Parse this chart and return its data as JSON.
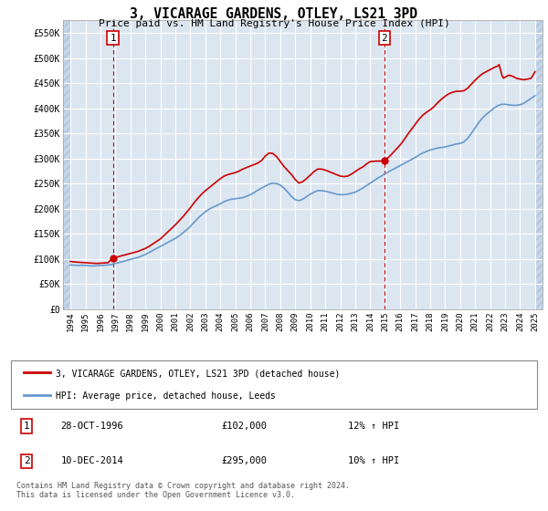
{
  "title": "3, VICARAGE GARDENS, OTLEY, LS21 3PD",
  "subtitle": "Price paid vs. HM Land Registry's House Price Index (HPI)",
  "hpi_label": "HPI: Average price, detached house, Leeds",
  "property_label": "3, VICARAGE GARDENS, OTLEY, LS21 3PD (detached house)",
  "sale1_label": "28-OCT-1996",
  "sale1_price": 102000,
  "sale1_hpi": "12% ↑ HPI",
  "sale2_label": "10-DEC-2014",
  "sale2_price": 295000,
  "sale2_hpi": "10% ↑ HPI",
  "sale1_date_num": 1996.83,
  "sale2_date_num": 2014.94,
  "ylim_min": 0,
  "ylim_max": 575000,
  "xlim_min": 1993.5,
  "xlim_max": 2025.5,
  "background_color": "#dce6f1",
  "red_line_color": "#cc0000",
  "blue_line_color": "#6699cc",
  "vline_color": "#cc0000",
  "grid_color": "#ffffff",
  "footer_text": "Contains HM Land Registry data © Crown copyright and database right 2024.\nThis data is licensed under the Open Government Licence v3.0.",
  "hpi_data": [
    [
      1994.0,
      88000
    ],
    [
      1994.25,
      87500
    ],
    [
      1994.5,
      87000
    ],
    [
      1994.75,
      87500
    ],
    [
      1995.0,
      87000
    ],
    [
      1995.25,
      86500
    ],
    [
      1995.5,
      86000
    ],
    [
      1995.75,
      86500
    ],
    [
      1996.0,
      87000
    ],
    [
      1996.25,
      87500
    ],
    [
      1996.5,
      88000
    ],
    [
      1996.75,
      89000
    ],
    [
      1997.0,
      91000
    ],
    [
      1997.25,
      93000
    ],
    [
      1997.5,
      95000
    ],
    [
      1997.75,
      97000
    ],
    [
      1998.0,
      99000
    ],
    [
      1998.25,
      101000
    ],
    [
      1998.5,
      103000
    ],
    [
      1998.75,
      106000
    ],
    [
      1999.0,
      109000
    ],
    [
      1999.25,
      113000
    ],
    [
      1999.5,
      117000
    ],
    [
      1999.75,
      121000
    ],
    [
      2000.0,
      125000
    ],
    [
      2000.25,
      129000
    ],
    [
      2000.5,
      133000
    ],
    [
      2000.75,
      137000
    ],
    [
      2001.0,
      141000
    ],
    [
      2001.25,
      146000
    ],
    [
      2001.5,
      152000
    ],
    [
      2001.75,
      158000
    ],
    [
      2002.0,
      165000
    ],
    [
      2002.25,
      173000
    ],
    [
      2002.5,
      181000
    ],
    [
      2002.75,
      188000
    ],
    [
      2003.0,
      194000
    ],
    [
      2003.25,
      199000
    ],
    [
      2003.5,
      203000
    ],
    [
      2003.75,
      206000
    ],
    [
      2004.0,
      210000
    ],
    [
      2004.25,
      214000
    ],
    [
      2004.5,
      217000
    ],
    [
      2004.75,
      219000
    ],
    [
      2005.0,
      220000
    ],
    [
      2005.25,
      221000
    ],
    [
      2005.5,
      222000
    ],
    [
      2005.75,
      225000
    ],
    [
      2006.0,
      228000
    ],
    [
      2006.25,
      232000
    ],
    [
      2006.5,
      237000
    ],
    [
      2006.75,
      241000
    ],
    [
      2007.0,
      245000
    ],
    [
      2007.25,
      249000
    ],
    [
      2007.5,
      251000
    ],
    [
      2007.75,
      250000
    ],
    [
      2008.0,
      247000
    ],
    [
      2008.25,
      241000
    ],
    [
      2008.5,
      233000
    ],
    [
      2008.75,
      224000
    ],
    [
      2009.0,
      218000
    ],
    [
      2009.25,
      216000
    ],
    [
      2009.5,
      219000
    ],
    [
      2009.75,
      224000
    ],
    [
      2010.0,
      229000
    ],
    [
      2010.25,
      233000
    ],
    [
      2010.5,
      236000
    ],
    [
      2010.75,
      236000
    ],
    [
      2011.0,
      235000
    ],
    [
      2011.25,
      233000
    ],
    [
      2011.5,
      231000
    ],
    [
      2011.75,
      229000
    ],
    [
      2012.0,
      228000
    ],
    [
      2012.25,
      228000
    ],
    [
      2012.5,
      229000
    ],
    [
      2012.75,
      231000
    ],
    [
      2013.0,
      233000
    ],
    [
      2013.25,
      237000
    ],
    [
      2013.5,
      241000
    ],
    [
      2013.75,
      246000
    ],
    [
      2014.0,
      251000
    ],
    [
      2014.25,
      256000
    ],
    [
      2014.5,
      261000
    ],
    [
      2014.75,
      265000
    ],
    [
      2015.0,
      270000
    ],
    [
      2015.25,
      274000
    ],
    [
      2015.5,
      278000
    ],
    [
      2015.75,
      282000
    ],
    [
      2016.0,
      286000
    ],
    [
      2016.25,
      290000
    ],
    [
      2016.5,
      294000
    ],
    [
      2016.75,
      298000
    ],
    [
      2017.0,
      302000
    ],
    [
      2017.25,
      307000
    ],
    [
      2017.5,
      311000
    ],
    [
      2017.75,
      314000
    ],
    [
      2018.0,
      317000
    ],
    [
      2018.25,
      319000
    ],
    [
      2018.5,
      321000
    ],
    [
      2018.75,
      322000
    ],
    [
      2019.0,
      323000
    ],
    [
      2019.25,
      325000
    ],
    [
      2019.5,
      327000
    ],
    [
      2019.75,
      329000
    ],
    [
      2020.0,
      330000
    ],
    [
      2020.25,
      333000
    ],
    [
      2020.5,
      340000
    ],
    [
      2020.75,
      350000
    ],
    [
      2021.0,
      361000
    ],
    [
      2021.25,
      372000
    ],
    [
      2021.5,
      381000
    ],
    [
      2021.75,
      388000
    ],
    [
      2022.0,
      394000
    ],
    [
      2022.25,
      400000
    ],
    [
      2022.5,
      405000
    ],
    [
      2022.75,
      408000
    ],
    [
      2023.0,
      408000
    ],
    [
      2023.25,
      407000
    ],
    [
      2023.5,
      406000
    ],
    [
      2023.75,
      406000
    ],
    [
      2024.0,
      407000
    ],
    [
      2024.25,
      410000
    ],
    [
      2024.5,
      415000
    ],
    [
      2024.75,
      420000
    ],
    [
      2025.0,
      425000
    ]
  ],
  "price_data_before_sale1": [
    [
      1994.0,
      95000
    ],
    [
      1994.25,
      94000
    ],
    [
      1994.5,
      93500
    ],
    [
      1994.75,
      93000
    ],
    [
      1995.0,
      92500
    ],
    [
      1995.25,
      92000
    ],
    [
      1995.5,
      91500
    ],
    [
      1995.75,
      91000
    ],
    [
      1996.0,
      91500
    ],
    [
      1996.25,
      92000
    ],
    [
      1996.5,
      92500
    ],
    [
      1996.83,
      102000
    ]
  ],
  "price_data_after_sale1": [
    [
      1996.83,
      102000
    ],
    [
      1997.0,
      103000
    ],
    [
      1997.25,
      105000
    ],
    [
      1997.5,
      107000
    ],
    [
      1997.75,
      109000
    ],
    [
      1998.0,
      111000
    ],
    [
      1998.25,
      113000
    ],
    [
      1998.5,
      115000
    ],
    [
      1998.75,
      118000
    ],
    [
      1999.0,
      121000
    ],
    [
      1999.25,
      125000
    ],
    [
      1999.5,
      130000
    ],
    [
      1999.75,
      135000
    ],
    [
      2000.0,
      140000
    ],
    [
      2000.25,
      147000
    ],
    [
      2000.5,
      154000
    ],
    [
      2000.75,
      161000
    ],
    [
      2001.0,
      168000
    ],
    [
      2001.25,
      176000
    ],
    [
      2001.5,
      184000
    ],
    [
      2001.75,
      193000
    ],
    [
      2002.0,
      202000
    ],
    [
      2002.25,
      212000
    ],
    [
      2002.5,
      221000
    ],
    [
      2002.75,
      229000
    ],
    [
      2003.0,
      236000
    ],
    [
      2003.25,
      242000
    ],
    [
      2003.5,
      248000
    ],
    [
      2003.75,
      254000
    ],
    [
      2004.0,
      260000
    ],
    [
      2004.25,
      265000
    ],
    [
      2004.5,
      268000
    ],
    [
      2004.75,
      270000
    ],
    [
      2005.0,
      272000
    ],
    [
      2005.25,
      275000
    ],
    [
      2005.5,
      279000
    ],
    [
      2005.75,
      282000
    ],
    [
      2006.0,
      285000
    ],
    [
      2006.25,
      288000
    ],
    [
      2006.5,
      291000
    ],
    [
      2006.75,
      296000
    ],
    [
      2007.0,
      305000
    ],
    [
      2007.25,
      311000
    ],
    [
      2007.5,
      310000
    ],
    [
      2007.75,
      304000
    ],
    [
      2008.0,
      294000
    ],
    [
      2008.25,
      284000
    ],
    [
      2008.5,
      276000
    ],
    [
      2008.75,
      268000
    ],
    [
      2009.0,
      258000
    ],
    [
      2009.25,
      251000
    ],
    [
      2009.5,
      254000
    ],
    [
      2009.75,
      260000
    ],
    [
      2010.0,
      267000
    ],
    [
      2010.25,
      274000
    ],
    [
      2010.5,
      279000
    ],
    [
      2010.75,
      279000
    ],
    [
      2011.0,
      277000
    ],
    [
      2011.25,
      274000
    ],
    [
      2011.5,
      271000
    ],
    [
      2011.75,
      268000
    ],
    [
      2012.0,
      265000
    ],
    [
      2012.25,
      264000
    ],
    [
      2012.5,
      265000
    ],
    [
      2012.75,
      269000
    ],
    [
      2013.0,
      274000
    ],
    [
      2013.25,
      279000
    ],
    [
      2013.5,
      283000
    ],
    [
      2013.75,
      289000
    ],
    [
      2014.0,
      294000
    ],
    [
      2014.5,
      295000
    ],
    [
      2014.94,
      295000
    ],
    [
      2015.0,
      298000
    ],
    [
      2015.25,
      303000
    ],
    [
      2015.5,
      311000
    ],
    [
      2015.75,
      319000
    ],
    [
      2016.0,
      327000
    ],
    [
      2016.25,
      337000
    ],
    [
      2016.5,
      348000
    ],
    [
      2016.75,
      358000
    ],
    [
      2017.0,
      368000
    ],
    [
      2017.25,
      378000
    ],
    [
      2017.5,
      386000
    ],
    [
      2017.75,
      392000
    ],
    [
      2018.0,
      397000
    ],
    [
      2018.25,
      403000
    ],
    [
      2018.5,
      411000
    ],
    [
      2018.75,
      418000
    ],
    [
      2019.0,
      424000
    ],
    [
      2019.25,
      429000
    ],
    [
      2019.5,
      432000
    ],
    [
      2019.75,
      434000
    ],
    [
      2020.0,
      434000
    ],
    [
      2020.25,
      435000
    ],
    [
      2020.5,
      440000
    ],
    [
      2020.75,
      448000
    ],
    [
      2021.0,
      456000
    ],
    [
      2021.25,
      463000
    ],
    [
      2021.5,
      469000
    ],
    [
      2021.75,
      473000
    ],
    [
      2022.0,
      477000
    ],
    [
      2022.25,
      481000
    ],
    [
      2022.5,
      484000
    ],
    [
      2022.6,
      487000
    ],
    [
      2022.7,
      476000
    ],
    [
      2022.8,
      465000
    ],
    [
      2022.9,
      460000
    ],
    [
      2023.0,
      462000
    ],
    [
      2023.25,
      466000
    ],
    [
      2023.5,
      464000
    ],
    [
      2023.75,
      460000
    ],
    [
      2024.0,
      458000
    ],
    [
      2024.25,
      457000
    ],
    [
      2024.5,
      458000
    ],
    [
      2024.75,
      460000
    ],
    [
      2025.0,
      473000
    ]
  ],
  "xticks": [
    1994,
    1995,
    1996,
    1997,
    1998,
    1999,
    2000,
    2001,
    2002,
    2003,
    2004,
    2005,
    2006,
    2007,
    2008,
    2009,
    2010,
    2011,
    2012,
    2013,
    2014,
    2015,
    2016,
    2017,
    2018,
    2019,
    2020,
    2021,
    2022,
    2023,
    2024,
    2025
  ],
  "yticks": [
    0,
    50000,
    100000,
    150000,
    200000,
    250000,
    300000,
    350000,
    400000,
    450000,
    500000,
    550000
  ]
}
